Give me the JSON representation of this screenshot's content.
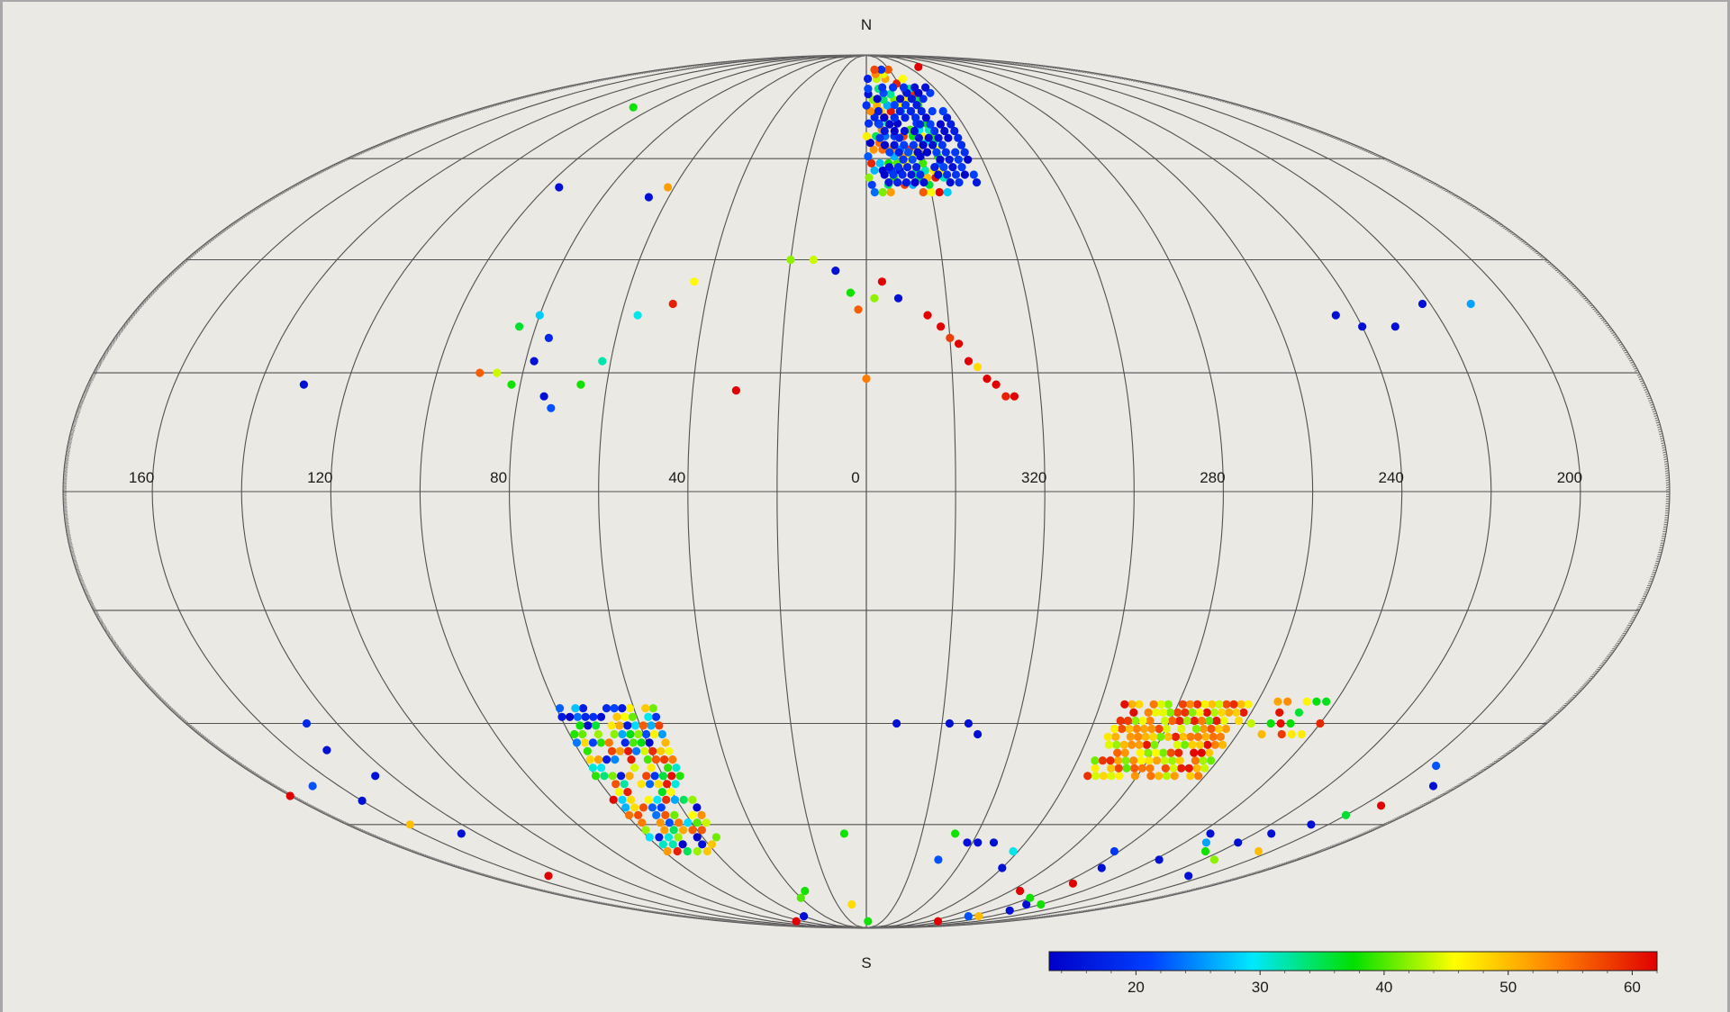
{
  "chart_data": {
    "type": "scatter",
    "projection": "mollweide",
    "title": "",
    "pole_labels": {
      "north": "N",
      "south": "S"
    },
    "longitude_labels": [
      "160",
      "120",
      "80",
      "40",
      "0",
      "320",
      "280",
      "240",
      "200"
    ],
    "longitude_label_values": [
      160,
      120,
      80,
      40,
      0,
      320,
      280,
      240,
      200
    ],
    "grid": true,
    "colorbar": {
      "ticks": [
        "20",
        "30",
        "40",
        "50",
        "60"
      ],
      "tick_values": [
        20,
        30,
        40,
        50,
        60
      ],
      "range": [
        13,
        62
      ],
      "colormap": [
        "#0000c8",
        "#0040ff",
        "#00e8ff",
        "#00e000",
        "#ffff00",
        "#ff8000",
        "#e00000"
      ],
      "placement": "bottom-right"
    },
    "clusters": [
      {
        "lon_range": [
          335,
          360
        ],
        "lat_range": [
          53,
          84
        ],
        "value_range": [
          13,
          62
        ],
        "step": 1.5,
        "density": 0.7
      },
      {
        "lon_range": [
          325,
          355
        ],
        "lat_range": [
          55,
          78
        ],
        "value_range": [
          13,
          22
        ],
        "step": 1.6,
        "density": 0.8
      },
      {
        "lon_range": [
          55,
          80
        ],
        "lat_range": [
          -66,
          -36
        ],
        "value_range": [
          13,
          62
        ],
        "step": 1.6,
        "density": 0.75
      },
      {
        "lon_range": [
          262,
          295
        ],
        "lat_range": [
          -50,
          -36
        ],
        "value_range": [
          40,
          62
        ],
        "step": 1.5,
        "density": 0.85
      },
      {
        "lon_range": [
          240,
          260
        ],
        "lat_range": [
          -42,
          -36
        ],
        "value_range": [
          35,
          62
        ],
        "step": 2.0,
        "density": 0.5
      }
    ],
    "points": [
      {
        "lon": 345,
        "lat": 30,
        "value": 62
      },
      {
        "lon": 342,
        "lat": 28,
        "value": 62
      },
      {
        "lon": 340,
        "lat": 26,
        "value": 58
      },
      {
        "lon": 338,
        "lat": 25,
        "value": 62
      },
      {
        "lon": 336,
        "lat": 22,
        "value": 62
      },
      {
        "lon": 334,
        "lat": 21,
        "value": 48
      },
      {
        "lon": 332,
        "lat": 19,
        "value": 62
      },
      {
        "lon": 330,
        "lat": 18,
        "value": 62
      },
      {
        "lon": 328,
        "lat": 16,
        "value": 60
      },
      {
        "lon": 326,
        "lat": 16,
        "value": 62
      },
      {
        "lon": 352,
        "lat": 33,
        "value": 15
      },
      {
        "lon": 356,
        "lat": 36,
        "value": 62
      },
      {
        "lon": 358,
        "lat": 33,
        "value": 42
      },
      {
        "lon": 4,
        "lat": 34,
        "value": 38
      },
      {
        "lon": 8,
        "lat": 38,
        "value": 15
      },
      {
        "lon": 14,
        "lat": 40,
        "value": 44
      },
      {
        "lon": 20,
        "lat": 40,
        "value": 42
      },
      {
        "lon": 2,
        "lat": 31,
        "value": 56
      },
      {
        "lon": 30,
        "lat": 17,
        "value": 62
      },
      {
        "lon": 0,
        "lat": 19,
        "value": 54
      },
      {
        "lon": 80,
        "lat": 30,
        "value": 28
      },
      {
        "lon": 76,
        "lat": 26,
        "value": 18
      },
      {
        "lon": 78,
        "lat": 22,
        "value": 15
      },
      {
        "lon": 82,
        "lat": 18,
        "value": 38
      },
      {
        "lon": 74,
        "lat": 16,
        "value": 15
      },
      {
        "lon": 72,
        "lat": 14,
        "value": 22
      },
      {
        "lon": 84,
        "lat": 28,
        "value": 36
      },
      {
        "lon": 86,
        "lat": 20,
        "value": 44
      },
      {
        "lon": 90,
        "lat": 20,
        "value": 56
      },
      {
        "lon": 66,
        "lat": 18,
        "value": 38
      },
      {
        "lon": 62,
        "lat": 22,
        "value": 32
      },
      {
        "lon": 56,
        "lat": 30,
        "value": 30
      },
      {
        "lon": 48,
        "lat": 32,
        "value": 60
      },
      {
        "lon": 44,
        "lat": 36,
        "value": 46
      },
      {
        "lon": 66,
        "lat": 52,
        "value": 15
      },
      {
        "lon": 62,
        "lat": 54,
        "value": 52
      },
      {
        "lon": 96,
        "lat": 54,
        "value": 15
      },
      {
        "lon": 110,
        "lat": 72,
        "value": 38
      },
      {
        "lon": 130,
        "lat": 18,
        "value": 15
      },
      {
        "lon": 310,
        "lat": 84,
        "value": 62
      },
      {
        "lon": 245,
        "lat": 30,
        "value": 15
      },
      {
        "lon": 240,
        "lat": 28,
        "value": 15
      },
      {
        "lon": 232,
        "lat": 28,
        "value": 15
      },
      {
        "lon": 222,
        "lat": 32,
        "value": 15
      },
      {
        "lon": 210,
        "lat": 32,
        "value": 26
      },
      {
        "lon": 148,
        "lat": -40,
        "value": 18
      },
      {
        "lon": 150,
        "lat": -45,
        "value": 15
      },
      {
        "lon": 145,
        "lat": -50,
        "value": 15
      },
      {
        "lon": 158,
        "lat": -60,
        "value": 50
      },
      {
        "lon": 160,
        "lat": -55,
        "value": 15
      },
      {
        "lon": 168,
        "lat": -52,
        "value": 22
      },
      {
        "lon": 150,
        "lat": -72,
        "value": 62
      },
      {
        "lon": 146,
        "lat": -62,
        "value": 15
      },
      {
        "lon": 352,
        "lat": -40,
        "value": 15
      },
      {
        "lon": 338,
        "lat": -40,
        "value": 15
      },
      {
        "lon": 333,
        "lat": -40,
        "value": 15
      },
      {
        "lon": 330,
        "lat": -42,
        "value": 15
      },
      {
        "lon": 8,
        "lat": -62,
        "value": 38
      },
      {
        "lon": 34,
        "lat": -76,
        "value": 38
      },
      {
        "lon": 40,
        "lat": -78,
        "value": 40
      },
      {
        "lon": 10,
        "lat": -80,
        "value": 48
      },
      {
        "lon": 358,
        "lat": -86,
        "value": 38
      },
      {
        "lon": 88,
        "lat": -86,
        "value": 62
      },
      {
        "lon": 60,
        "lat": -84,
        "value": 15
      },
      {
        "lon": 328,
        "lat": -62,
        "value": 38
      },
      {
        "lon": 322,
        "lat": -64,
        "value": 15
      },
      {
        "lon": 318,
        "lat": -64,
        "value": 15
      },
      {
        "lon": 312,
        "lat": -64,
        "value": 15
      },
      {
        "lon": 330,
        "lat": -68,
        "value": 22
      },
      {
        "lon": 302,
        "lat": -66,
        "value": 30
      },
      {
        "lon": 300,
        "lat": -70,
        "value": 15
      },
      {
        "lon": 275,
        "lat": -76,
        "value": 62
      },
      {
        "lon": 270,
        "lat": -86,
        "value": 62
      },
      {
        "lon": 255,
        "lat": -74,
        "value": 62
      },
      {
        "lon": 236,
        "lat": -62,
        "value": 15
      },
      {
        "lon": 232,
        "lat": -64,
        "value": 26
      },
      {
        "lon": 238,
        "lat": -68,
        "value": 15
      },
      {
        "lon": 226,
        "lat": -66,
        "value": 38
      },
      {
        "lon": 220,
        "lat": -64,
        "value": 15
      },
      {
        "lon": 214,
        "lat": -62,
        "value": 15
      },
      {
        "lon": 206,
        "lat": -60,
        "value": 15
      },
      {
        "lon": 200,
        "lat": -58,
        "value": 36
      },
      {
        "lon": 194,
        "lat": -56,
        "value": 62
      },
      {
        "lon": 188,
        "lat": -52,
        "value": 15
      },
      {
        "lon": 196,
        "lat": -48,
        "value": 22
      },
      {
        "lon": 180,
        "lat": -54,
        "value": 62
      },
      {
        "lon": 215,
        "lat": -68,
        "value": 42
      },
      {
        "lon": 205,
        "lat": -66,
        "value": 50
      },
      {
        "lon": 208,
        "lat": -72,
        "value": 15
      },
      {
        "lon": 250,
        "lat": -80,
        "value": 15
      },
      {
        "lon": 246,
        "lat": -82,
        "value": 15
      },
      {
        "lon": 260,
        "lat": -78,
        "value": 38
      },
      {
        "lon": 252,
        "lat": -84,
        "value": 50
      },
      {
        "lon": 262,
        "lat": -84,
        "value": 22
      },
      {
        "lon": 240,
        "lat": -80,
        "value": 38
      },
      {
        "lon": 256,
        "lat": -70,
        "value": 15
      },
      {
        "lon": 262,
        "lat": -66,
        "value": 20
      }
    ]
  }
}
